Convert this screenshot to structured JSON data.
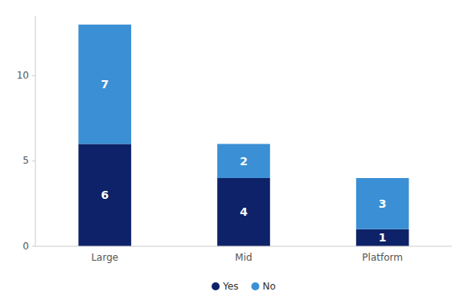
{
  "chart_data": {
    "type": "bar",
    "stacked": true,
    "categories": [
      "Large",
      "Mid",
      "Platform"
    ],
    "series": [
      {
        "name": "Yes",
        "color": "#0d2268",
        "values": [
          6,
          4,
          1
        ]
      },
      {
        "name": "No",
        "color": "#3b8fd4",
        "values": [
          7,
          2,
          3
        ]
      }
    ],
    "ylim": [
      0,
      13.5
    ],
    "yticks": [
      0,
      5,
      10
    ],
    "grid": false,
    "data_labels": true,
    "legend": "bottom"
  }
}
